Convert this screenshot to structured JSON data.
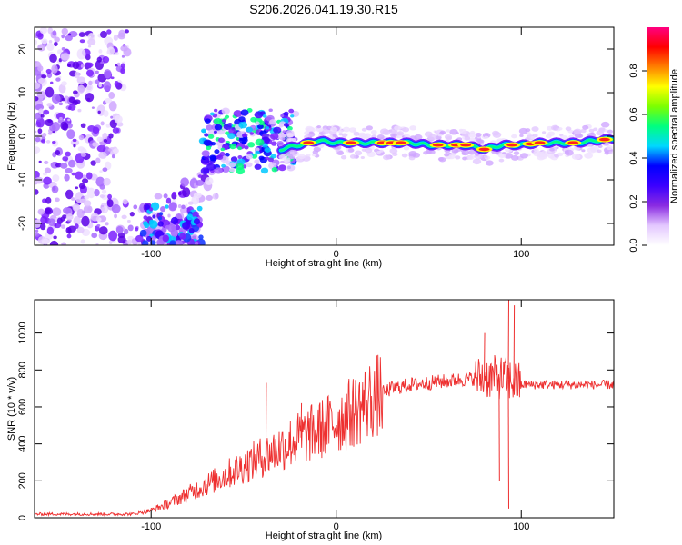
{
  "chart_data": [
    {
      "type": "heatmap",
      "title": "S206.2026.041.19.30.R15",
      "xlabel": "Height of straight line (km)",
      "ylabel": "Frequency (Hz)",
      "xlim": [
        -163,
        150
      ],
      "ylim": [
        -25,
        25
      ],
      "xticks": [
        -100,
        0,
        100
      ],
      "yticks": [
        -20,
        -10,
        0,
        10,
        20
      ],
      "colorbar": {
        "label": "Normalized spectral amplitude",
        "range": [
          0,
          1
        ],
        "ticks": [
          "0.0",
          "0.2",
          "0.4",
          "0.6",
          "0.8"
        ],
        "colors": [
          "#ffffff",
          "#e3c7ff",
          "#8a2be2",
          "#3b00ff",
          "#0000ff",
          "#00d8ff",
          "#00ff80",
          "#7cff00",
          "#ffff00",
          "#ff8000",
          "#ff0000",
          "#ff0080"
        ]
      },
      "ridge": {
        "x": [
          -70,
          -60,
          -50,
          -40,
          -30,
          -20,
          -10,
          0,
          10,
          20,
          30,
          40,
          50,
          60,
          70,
          80,
          90,
          100,
          110,
          120,
          130,
          140,
          150
        ],
        "freq": [
          -3,
          -2,
          -3,
          -2,
          -3,
          -2,
          -1,
          -1.5,
          -1.5,
          -1.5,
          -1.5,
          -1.5,
          -2,
          -2,
          -2,
          -3,
          -2,
          -2,
          -1.5,
          -1.5,
          -1.5,
          -1,
          -0.5
        ]
      }
    },
    {
      "type": "line",
      "xlabel": "Height of straight line (km)",
      "ylabel": "SNR (10 * v/v)",
      "xlim": [
        -163,
        150
      ],
      "ylim": [
        0,
        1180
      ],
      "xticks": [
        -100,
        0,
        100
      ],
      "yticks": [
        0,
        200,
        400,
        600,
        800,
        1000
      ],
      "series": [
        {
          "name": "SNR",
          "color": "#ee3030",
          "envelope": {
            "x": [
              -163,
              -110,
              -100,
              -90,
              -80,
              -70,
              -60,
              -50,
              -40,
              -30,
              -20,
              -10,
              0,
              10,
              20,
              30,
              40,
              50,
              60,
              70,
              80,
              90,
              95,
              100,
              110,
              120,
              130,
              140,
              150
            ],
            "y": [
              20,
              20,
              40,
              80,
              130,
              180,
              230,
              280,
              330,
              380,
              430,
              470,
              520,
              580,
              650,
              700,
              720,
              730,
              740,
              750,
              760,
              760,
              740,
              720,
              720,
              720,
              720,
              720,
              720
            ]
          },
          "spikes": [
            {
              "x": -38,
              "y": 730
            },
            {
              "x": -19,
              "y": 620
            },
            {
              "x": 80,
              "y": 1000
            },
            {
              "x": 93,
              "y": 1180
            },
            {
              "x": 93,
              "y": 50
            },
            {
              "x": 96,
              "y": 1150
            },
            {
              "x": 88,
              "y": 200
            }
          ]
        }
      ]
    }
  ]
}
